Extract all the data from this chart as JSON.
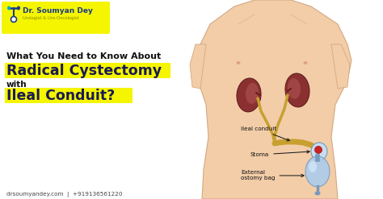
{
  "bg_color": "#ffffff",
  "title_line1": "What You Need to Know About",
  "title_line2": "Radical Cystectomy",
  "title_line3": "with",
  "title_line4": "Ileal Conduit?",
  "highlight_color": "#f5f500",
  "text_dark": "#1a1a55",
  "text_black": "#111111",
  "logo_name": "Dr. Soumyan Dey",
  "logo_subtitle": "Urologist & Uro-Oncologist",
  "logo_bg": "#f5f500",
  "website": "drsoumyandey.com  |  +919136561220",
  "label1": "Ileal conduit",
  "label2": "Stoma",
  "label3": "External\nostomy bag",
  "body_skin": "#f2cda8",
  "body_outline": "#d4a882",
  "kidney_color": "#8B3030",
  "kidney_inner": "#a04545",
  "conduit_color": "#c8a030",
  "bag_color": "#aaccee",
  "bag_outline": "#7799bb",
  "stoma_red": "#cc2222",
  "label_color": "#111111",
  "arrow_color": "#111111",
  "site_color": "#444444",
  "nipple_color": "#d4956a",
  "logo_blue": "#1a3a8a",
  "logo_teal": "#00aacc",
  "logo_sub_color": "#888800"
}
